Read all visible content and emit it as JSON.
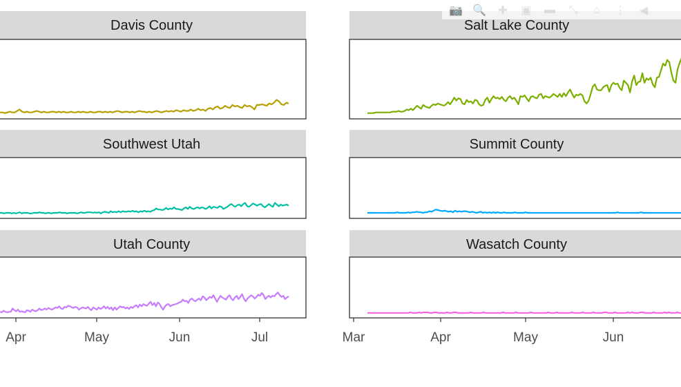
{
  "toolbar": {
    "icons": [
      "camera-icon",
      "zoom-icon",
      "pan-icon",
      "zoom-in-icon",
      "zoom-out-icon",
      "autoscale-icon",
      "home-icon",
      "spike-lines-icon",
      "hover-icon"
    ]
  },
  "chart_data": {
    "type": "line",
    "facets": "small-multiples",
    "x_tick_labels_left": [
      "Apr",
      "May",
      "Jun",
      "Jul"
    ],
    "x_tick_labels_right": [
      "Mar",
      "Apr",
      "May",
      "Jun"
    ],
    "grid": false,
    "panels": [
      {
        "name": "Davis County",
        "color": "#B79F00",
        "ylim": [
          0,
          1
        ],
        "values": [
          0.05,
          0.05,
          0.04,
          0.05,
          0.06,
          0.05,
          0.05,
          0.07,
          0.09,
          0.06,
          0.05,
          0.06,
          0.05,
          0.05,
          0.06,
          0.07,
          0.06,
          0.05,
          0.06,
          0.05,
          0.05,
          0.06,
          0.06,
          0.05,
          0.06,
          0.05,
          0.06,
          0.05,
          0.05,
          0.06,
          0.05,
          0.05,
          0.06,
          0.05,
          0.06,
          0.05,
          0.05,
          0.06,
          0.05,
          0.05,
          0.06,
          0.06,
          0.05,
          0.06,
          0.05,
          0.06,
          0.05,
          0.06,
          0.07,
          0.06,
          0.05,
          0.06,
          0.06,
          0.05,
          0.06,
          0.05,
          0.06,
          0.07,
          0.06,
          0.06,
          0.05,
          0.06,
          0.05,
          0.06,
          0.07,
          0.06,
          0.05,
          0.06,
          0.07,
          0.06,
          0.07,
          0.06,
          0.08,
          0.07,
          0.06,
          0.08,
          0.07,
          0.07,
          0.09,
          0.07,
          0.08,
          0.1,
          0.08,
          0.09,
          0.07,
          0.1,
          0.11,
          0.09,
          0.12,
          0.13,
          0.1,
          0.11,
          0.14,
          0.12,
          0.11,
          0.15,
          0.13,
          0.14,
          0.12,
          0.11,
          0.15,
          0.13,
          0.14,
          0.12,
          0.09,
          0.15,
          0.15,
          0.16,
          0.15,
          0.14,
          0.17,
          0.16,
          0.18,
          0.22,
          0.2,
          0.16,
          0.15,
          0.18,
          0.17
        ]
      },
      {
        "name": "Salt Lake County",
        "color": "#7CAE00",
        "ylim": [
          0,
          1
        ],
        "values": [
          0.04,
          0.04,
          0.04,
          0.04,
          0.05,
          0.05,
          0.05,
          0.05,
          0.05,
          0.05,
          0.05,
          0.05,
          0.06,
          0.06,
          0.06,
          0.07,
          0.06,
          0.06,
          0.07,
          0.09,
          0.08,
          0.1,
          0.08,
          0.11,
          0.14,
          0.12,
          0.1,
          0.15,
          0.13,
          0.12,
          0.11,
          0.14,
          0.16,
          0.15,
          0.17,
          0.16,
          0.15,
          0.14,
          0.16,
          0.19,
          0.16,
          0.2,
          0.25,
          0.21,
          0.24,
          0.23,
          0.17,
          0.16,
          0.22,
          0.19,
          0.2,
          0.17,
          0.22,
          0.21,
          0.16,
          0.14,
          0.15,
          0.22,
          0.25,
          0.18,
          0.23,
          0.27,
          0.24,
          0.25,
          0.23,
          0.26,
          0.22,
          0.2,
          0.25,
          0.27,
          0.23,
          0.25,
          0.21,
          0.16,
          0.27,
          0.26,
          0.28,
          0.24,
          0.2,
          0.26,
          0.27,
          0.25,
          0.24,
          0.29,
          0.3,
          0.24,
          0.27,
          0.26,
          0.25,
          0.27,
          0.3,
          0.28,
          0.26,
          0.3,
          0.26,
          0.31,
          0.27,
          0.32,
          0.36,
          0.3,
          0.25,
          0.29,
          0.28,
          0.3,
          0.28,
          0.2,
          0.17,
          0.21,
          0.3,
          0.4,
          0.43,
          0.36,
          0.35,
          0.35,
          0.39,
          0.41,
          0.42,
          0.33,
          0.42,
          0.45,
          0.43,
          0.44,
          0.38,
          0.35,
          0.48,
          0.45,
          0.42,
          0.32,
          0.47,
          0.55,
          0.42,
          0.46,
          0.47,
          0.58,
          0.45,
          0.51,
          0.49,
          0.52,
          0.43,
          0.39,
          0.52,
          0.53,
          0.62,
          0.71,
          0.68,
          0.76,
          0.73,
          0.59,
          0.48,
          0.45,
          0.63,
          0.72,
          0.79,
          0.8
        ]
      },
      {
        "name": "Southwest Utah",
        "color": "#00BFA4",
        "ylim": [
          0,
          1
        ],
        "values": [
          0.05,
          0.05,
          0.04,
          0.05,
          0.05,
          0.05,
          0.04,
          0.05,
          0.04,
          0.05,
          0.06,
          0.04,
          0.05,
          0.05,
          0.05,
          0.04,
          0.04,
          0.05,
          0.05,
          0.05,
          0.06,
          0.05,
          0.05,
          0.04,
          0.05,
          0.05,
          0.04,
          0.05,
          0.05,
          0.05,
          0.06,
          0.05,
          0.05,
          0.05,
          0.04,
          0.05,
          0.05,
          0.05,
          0.05,
          0.04,
          0.05,
          0.06,
          0.05,
          0.05,
          0.06,
          0.06,
          0.06,
          0.05,
          0.06,
          0.05,
          0.06,
          0.04,
          0.06,
          0.07,
          0.06,
          0.05,
          0.08,
          0.06,
          0.07,
          0.06,
          0.08,
          0.06,
          0.08,
          0.07,
          0.07,
          0.08,
          0.07,
          0.09,
          0.07,
          0.08,
          0.06,
          0.08,
          0.07,
          0.09,
          0.07,
          0.08,
          0.07,
          0.09,
          0.1,
          0.13,
          0.11,
          0.11,
          0.1,
          0.11,
          0.14,
          0.11,
          0.13,
          0.12,
          0.15,
          0.12,
          0.12,
          0.11,
          0.1,
          0.13,
          0.15,
          0.12,
          0.16,
          0.13,
          0.12,
          0.14,
          0.15,
          0.13,
          0.15,
          0.14,
          0.12,
          0.14,
          0.17,
          0.13,
          0.16,
          0.15,
          0.14,
          0.17,
          0.16,
          0.12,
          0.14,
          0.16,
          0.19,
          0.21,
          0.18,
          0.16,
          0.19,
          0.2,
          0.17,
          0.21,
          0.23,
          0.17,
          0.16,
          0.19,
          0.22,
          0.2,
          0.18,
          0.2,
          0.21,
          0.17,
          0.15,
          0.18,
          0.21,
          0.18,
          0.16,
          0.23,
          0.2,
          0.17,
          0.2,
          0.18,
          0.19,
          0.2,
          0.18
        ]
      },
      {
        "name": "Summit County",
        "color": "#00A9FF",
        "ylim": [
          0,
          1
        ],
        "values": [
          0.05,
          0.05,
          0.05,
          0.05,
          0.05,
          0.05,
          0.05,
          0.05,
          0.05,
          0.05,
          0.05,
          0.05,
          0.05,
          0.05,
          0.06,
          0.05,
          0.05,
          0.05,
          0.05,
          0.06,
          0.05,
          0.06,
          0.06,
          0.07,
          0.06,
          0.06,
          0.05,
          0.06,
          0.06,
          0.08,
          0.07,
          0.09,
          0.11,
          0.1,
          0.09,
          0.08,
          0.09,
          0.08,
          0.07,
          0.08,
          0.06,
          0.09,
          0.07,
          0.08,
          0.07,
          0.08,
          0.08,
          0.07,
          0.06,
          0.07,
          0.06,
          0.05,
          0.06,
          0.07,
          0.05,
          0.06,
          0.05,
          0.06,
          0.05,
          0.06,
          0.05,
          0.06,
          0.05,
          0.05,
          0.06,
          0.05,
          0.05,
          0.05,
          0.05,
          0.06,
          0.05,
          0.05,
          0.05,
          0.05,
          0.06,
          0.05,
          0.05,
          0.05,
          0.05,
          0.05,
          0.05,
          0.05,
          0.05,
          0.05,
          0.05,
          0.05,
          0.05,
          0.05,
          0.05,
          0.05,
          0.05,
          0.05,
          0.05,
          0.05,
          0.05,
          0.05,
          0.05,
          0.05,
          0.05,
          0.05,
          0.05,
          0.05,
          0.05,
          0.05,
          0.05,
          0.05,
          0.05,
          0.05,
          0.05,
          0.05,
          0.05,
          0.05,
          0.05,
          0.05,
          0.05,
          0.05,
          0.05,
          0.06,
          0.05,
          0.05,
          0.05,
          0.05,
          0.05,
          0.05,
          0.05,
          0.05,
          0.05,
          0.05,
          0.06,
          0.05,
          0.05,
          0.05,
          0.05,
          0.05,
          0.05,
          0.05,
          0.05,
          0.05,
          0.05,
          0.05,
          0.05,
          0.05,
          0.05,
          0.05,
          0.05,
          0.05,
          0.05,
          0.05,
          0.05
        ]
      },
      {
        "name": "Utah County",
        "color": "#C77CFF",
        "ylim": [
          0,
          1
        ],
        "values": [
          0.06,
          0.05,
          0.08,
          0.06,
          0.05,
          0.06,
          0.06,
          0.12,
          0.09,
          0.07,
          0.1,
          0.06,
          0.07,
          0.06,
          0.05,
          0.09,
          0.08,
          0.06,
          0.1,
          0.08,
          0.07,
          0.09,
          0.12,
          0.09,
          0.1,
          0.12,
          0.1,
          0.13,
          0.11,
          0.1,
          0.12,
          0.14,
          0.13,
          0.16,
          0.12,
          0.11,
          0.15,
          0.14,
          0.17,
          0.16,
          0.14,
          0.13,
          0.15,
          0.14,
          0.1,
          0.12,
          0.14,
          0.13,
          0.12,
          0.15,
          0.11,
          0.09,
          0.14,
          0.12,
          0.1,
          0.14,
          0.11,
          0.13,
          0.16,
          0.12,
          0.15,
          0.11,
          0.14,
          0.09,
          0.14,
          0.1,
          0.13,
          0.16,
          0.14,
          0.15,
          0.12,
          0.14,
          0.11,
          0.15,
          0.13,
          0.16,
          0.18,
          0.14,
          0.19,
          0.16,
          0.2,
          0.18,
          0.17,
          0.21,
          0.24,
          0.18,
          0.22,
          0.16,
          0.23,
          0.2,
          0.14,
          0.1,
          0.16,
          0.19,
          0.2,
          0.16,
          0.18,
          0.19,
          0.2,
          0.21,
          0.23,
          0.24,
          0.28,
          0.25,
          0.26,
          0.22,
          0.28,
          0.3,
          0.27,
          0.25,
          0.28,
          0.3,
          0.27,
          0.34,
          0.32,
          0.27,
          0.3,
          0.33,
          0.31,
          0.36,
          0.3,
          0.24,
          0.3,
          0.35,
          0.32,
          0.3,
          0.28,
          0.33,
          0.36,
          0.3,
          0.27,
          0.32,
          0.35,
          0.29,
          0.33,
          0.38,
          0.3,
          0.25,
          0.3,
          0.33,
          0.36,
          0.34,
          0.3,
          0.33,
          0.37,
          0.35,
          0.4,
          0.36,
          0.29,
          0.33,
          0.35,
          0.32,
          0.35,
          0.34,
          0.38,
          0.41,
          0.36,
          0.33,
          0.35,
          0.29,
          0.32,
          0.34
        ]
      },
      {
        "name": "Wasatch County",
        "color": "#F564E3",
        "ylim": [
          0,
          1
        ],
        "values": [
          0.04,
          0.04,
          0.04,
          0.04,
          0.04,
          0.04,
          0.04,
          0.04,
          0.04,
          0.04,
          0.04,
          0.04,
          0.04,
          0.04,
          0.04,
          0.04,
          0.04,
          0.04,
          0.04,
          0.04,
          0.05,
          0.04,
          0.04,
          0.04,
          0.05,
          0.04,
          0.05,
          0.05,
          0.05,
          0.04,
          0.04,
          0.05,
          0.05,
          0.04,
          0.04,
          0.04,
          0.04,
          0.05,
          0.04,
          0.04,
          0.05,
          0.05,
          0.04,
          0.04,
          0.04,
          0.04,
          0.04,
          0.04,
          0.05,
          0.04,
          0.04,
          0.04,
          0.04,
          0.04,
          0.05,
          0.04,
          0.04,
          0.04,
          0.04,
          0.04,
          0.04,
          0.04,
          0.04,
          0.05,
          0.04,
          0.04,
          0.04,
          0.04,
          0.04,
          0.05,
          0.04,
          0.04,
          0.04,
          0.04,
          0.04,
          0.04,
          0.05,
          0.04,
          0.04,
          0.04,
          0.04,
          0.04,
          0.04,
          0.04,
          0.05,
          0.04,
          0.04,
          0.04,
          0.05,
          0.04,
          0.04,
          0.04,
          0.04,
          0.04,
          0.04,
          0.05,
          0.04,
          0.04,
          0.04,
          0.04,
          0.05,
          0.04,
          0.04,
          0.04,
          0.04,
          0.05,
          0.04,
          0.04,
          0.04,
          0.04,
          0.05,
          0.05,
          0.04,
          0.04,
          0.04,
          0.05,
          0.04,
          0.04,
          0.04,
          0.04,
          0.04,
          0.05,
          0.04,
          0.05,
          0.04,
          0.04,
          0.04,
          0.05,
          0.05,
          0.04,
          0.04,
          0.04,
          0.04,
          0.05,
          0.04,
          0.04,
          0.04,
          0.04,
          0.05,
          0.04,
          0.05,
          0.04,
          0.04,
          0.04,
          0.05,
          0.04,
          0.04,
          0.04
        ]
      }
    ]
  }
}
